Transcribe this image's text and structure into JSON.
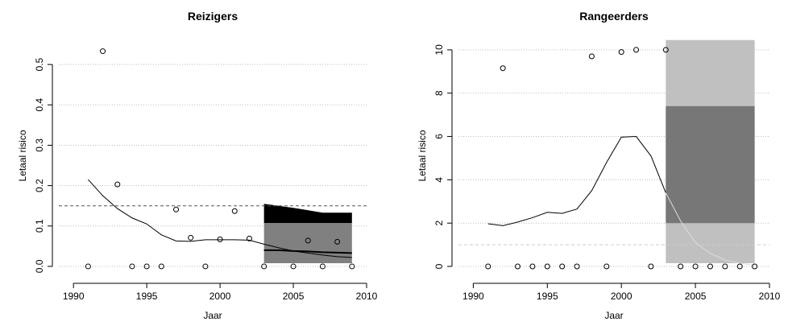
{
  "chart_data": [
    {
      "type": "scatter",
      "title": "Reizigers",
      "xlabel": "Jaar",
      "ylabel": "Letaal risico",
      "x": [
        1991,
        1992,
        1993,
        1994,
        1995,
        1996,
        1997,
        1998,
        1999,
        2000,
        2001,
        2002,
        2003,
        2004,
        2005,
        2006,
        2007,
        2008,
        2009
      ],
      "values": [
        0,
        0.533,
        0.203,
        0,
        0,
        0,
        0.141,
        0.071,
        0,
        0.067,
        0.137,
        0.069,
        0,
        null,
        0,
        0.064,
        0,
        0.061,
        0
      ],
      "trend": {
        "color": "#000000",
        "values": [
          0.215,
          0.175,
          0.143,
          0.12,
          0.105,
          0.078,
          0.063,
          0.062,
          0.066,
          0.066,
          0.066,
          0.065,
          0.055,
          0.046,
          0.038,
          0.033,
          0.028,
          0.024,
          0.022
        ]
      },
      "forecast": {
        "color": "#000000",
        "x": [
          2003,
          2004,
          2005,
          2006,
          2007,
          2008,
          2009
        ],
        "values": [
          0.04,
          0.04,
          0.038,
          0.037,
          0.035,
          0.034,
          0.033
        ]
      },
      "bands": [
        {
          "color": "#000000",
          "x": [
            2003,
            2005,
            2007,
            2009
          ],
          "upper": [
            0.155,
            0.145,
            0.133,
            0.133
          ],
          "lower": [
            0.107,
            0.107,
            0.107,
            0.107
          ]
        },
        {
          "color": "#808080",
          "x": [
            2003,
            2009
          ],
          "upper": [
            0.107,
            0.107
          ],
          "lower": [
            0.008,
            0.008
          ]
        }
      ],
      "hline": {
        "value": 0.15,
        "color": "#555555"
      },
      "xlim": [
        1989,
        2010
      ],
      "ylim": [
        -0.028,
        0.576
      ],
      "xticks": [
        1990,
        1995,
        2000,
        2005,
        2010
      ],
      "yticks": [
        {
          "value": 0,
          "label": "0.0"
        },
        0.1,
        0.2,
        0.3,
        0.4,
        0.5
      ],
      "grid": true
    },
    {
      "type": "scatter",
      "title": "Rangeerders",
      "xlabel": "Jaar",
      "ylabel": "Letaal risico",
      "x": [
        1991,
        1992,
        1993,
        1994,
        1995,
        1996,
        1997,
        1998,
        1999,
        2000,
        2001,
        2002,
        2003,
        2004,
        2005,
        2006,
        2007,
        2008,
        2009
      ],
      "values": [
        0,
        9.15,
        0,
        0,
        0,
        0,
        0,
        9.7,
        0,
        9.9,
        10,
        0,
        10,
        0,
        0,
        0,
        0,
        0,
        0
      ],
      "trend": {
        "color": "#000000",
        "values": [
          1.97,
          1.88,
          2.05,
          2.25,
          2.5,
          2.45,
          2.65,
          3.5,
          4.8,
          5.97,
          6.0,
          5.1,
          3.4,
          null,
          null,
          null,
          null,
          null,
          null
        ]
      },
      "forecast": {
        "color": "#dddddd",
        "x": [
          2003,
          2004,
          2005,
          2006,
          2007,
          2008,
          2009
        ],
        "values": [
          3.4,
          2.1,
          1.1,
          0.6,
          0.3,
          0.15,
          0.05
        ]
      },
      "bands": [
        {
          "color": "#c0c0c0",
          "x": [
            2003,
            2009
          ],
          "upper": [
            10.45,
            10.45
          ],
          "lower": [
            0.15,
            0.15
          ]
        },
        {
          "color": "#777777",
          "x": [
            2003,
            2009
          ],
          "upper": [
            7.4,
            7.4
          ],
          "lower": [
            2.0,
            2.0
          ]
        }
      ],
      "hline": {
        "value": 1.0,
        "color": "#cccccc"
      },
      "xlim": [
        1989,
        2010
      ],
      "ylim": [
        -0.52,
        10.74
      ],
      "xticks": [
        1990,
        1995,
        2000,
        2005,
        2010
      ],
      "yticks": [
        0,
        2,
        4,
        6,
        8,
        10
      ],
      "grid": true
    }
  ]
}
